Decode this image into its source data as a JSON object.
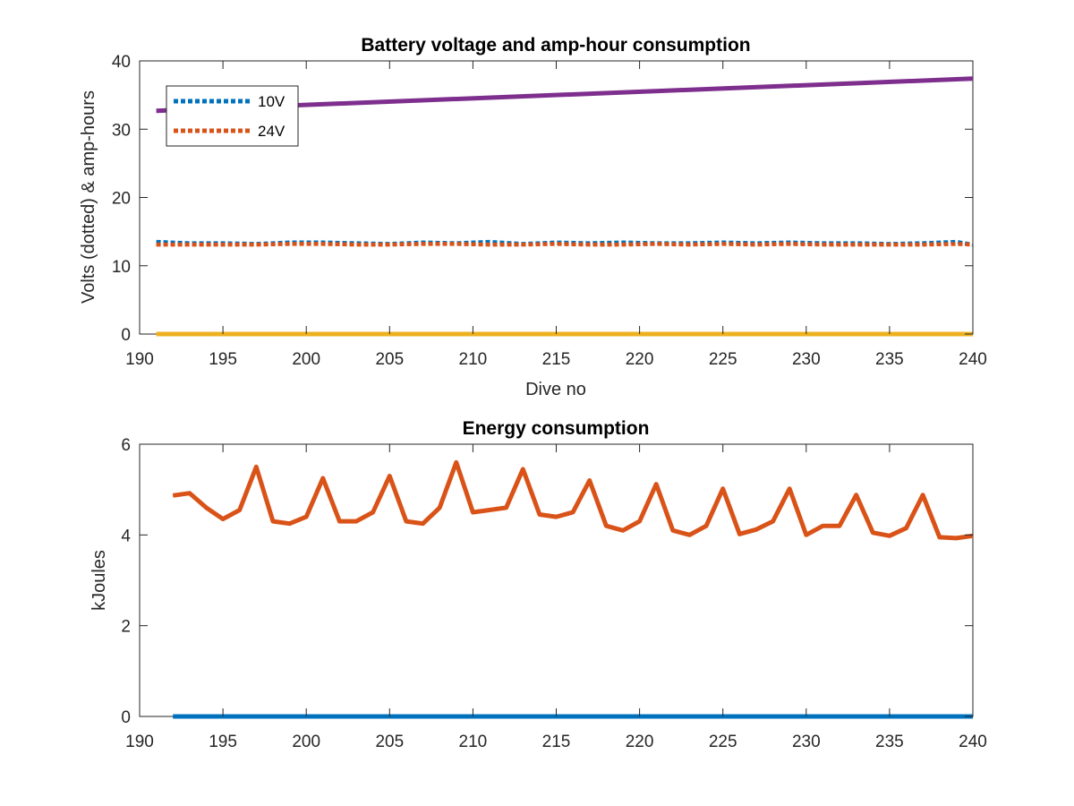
{
  "chart_data": [
    {
      "type": "line",
      "title": "Battery voltage and amp-hour consumption",
      "xlabel": "Dive no",
      "ylabel": "Volts (dotted) & amp-hours",
      "xlim": [
        190,
        240
      ],
      "ylim": [
        0,
        40
      ],
      "xticks": [
        190,
        195,
        200,
        205,
        210,
        215,
        220,
        225,
        230,
        235,
        240
      ],
      "yticks": [
        0,
        10,
        20,
        30,
        40
      ],
      "grid": false,
      "legend_position": "top-left",
      "series": [
        {
          "name": "10V",
          "style": "dotted",
          "color": "#0072BD",
          "x": [
            191,
            193,
            195,
            197,
            199,
            201,
            203,
            205,
            207,
            209,
            211,
            213,
            215,
            217,
            219,
            221,
            223,
            225,
            227,
            229,
            231,
            233,
            235,
            237,
            239,
            240
          ],
          "y": [
            13.5,
            13.3,
            13.3,
            13.2,
            13.4,
            13.4,
            13.3,
            13.2,
            13.4,
            13.3,
            13.5,
            13.2,
            13.4,
            13.3,
            13.4,
            13.3,
            13.3,
            13.4,
            13.3,
            13.4,
            13.3,
            13.3,
            13.2,
            13.3,
            13.5,
            13.1
          ]
        },
        {
          "name": "24V",
          "style": "dotted",
          "color": "#D95319",
          "x": [
            191,
            193,
            195,
            197,
            199,
            201,
            203,
            205,
            207,
            209,
            211,
            213,
            215,
            217,
            219,
            221,
            223,
            225,
            227,
            229,
            231,
            233,
            235,
            237,
            239,
            240
          ],
          "y": [
            13.1,
            13.1,
            13.1,
            13.1,
            13.2,
            13.2,
            13.1,
            13.1,
            13.2,
            13.2,
            13.1,
            13.1,
            13.2,
            13.1,
            13.1,
            13.2,
            13.1,
            13.2,
            13.1,
            13.2,
            13.1,
            13.1,
            13.1,
            13.1,
            13.2,
            13.1
          ]
        },
        {
          "style": "solid",
          "color": "#7E2F8E",
          "x": [
            191,
            240
          ],
          "y": [
            32.7,
            37.4
          ]
        },
        {
          "style": "solid",
          "color": "#EDB120",
          "x": [
            191,
            240
          ],
          "y": [
            0,
            0
          ]
        }
      ]
    },
    {
      "type": "line",
      "title": "Energy consumption",
      "xlabel": "",
      "ylabel": "kJoules",
      "xlim": [
        190,
        240
      ],
      "ylim": [
        0,
        6
      ],
      "xticks": [
        190,
        195,
        200,
        205,
        210,
        215,
        220,
        225,
        230,
        235,
        240
      ],
      "yticks": [
        0,
        2,
        4,
        6
      ],
      "grid": false,
      "series": [
        {
          "style": "solid",
          "color": "#D95319",
          "x": [
            192,
            193,
            194,
            195,
            196,
            197,
            198,
            199,
            200,
            201,
            202,
            203,
            204,
            205,
            206,
            207,
            208,
            209,
            210,
            211,
            212,
            213,
            214,
            215,
            216,
            217,
            218,
            219,
            220,
            221,
            222,
            223,
            224,
            225,
            226,
            227,
            228,
            229,
            230,
            231,
            232,
            233,
            234,
            235,
            236,
            237,
            238,
            239,
            240
          ],
          "y": [
            4.87,
            4.92,
            4.6,
            4.35,
            4.55,
            5.5,
            4.3,
            4.25,
            4.4,
            5.25,
            4.3,
            4.3,
            4.5,
            5.3,
            4.3,
            4.25,
            4.6,
            5.6,
            4.5,
            4.55,
            4.6,
            5.45,
            4.45,
            4.4,
            4.5,
            5.2,
            4.2,
            4.1,
            4.3,
            5.12,
            4.1,
            4.0,
            4.2,
            5.02,
            4.02,
            4.12,
            4.3,
            5.02,
            4.0,
            4.2,
            4.2,
            4.88,
            4.05,
            3.98,
            4.15,
            4.88,
            3.95,
            3.93,
            3.98
          ]
        },
        {
          "style": "solid",
          "color": "#0072BD",
          "x": [
            192,
            240
          ],
          "y": [
            0,
            0
          ]
        }
      ]
    }
  ]
}
